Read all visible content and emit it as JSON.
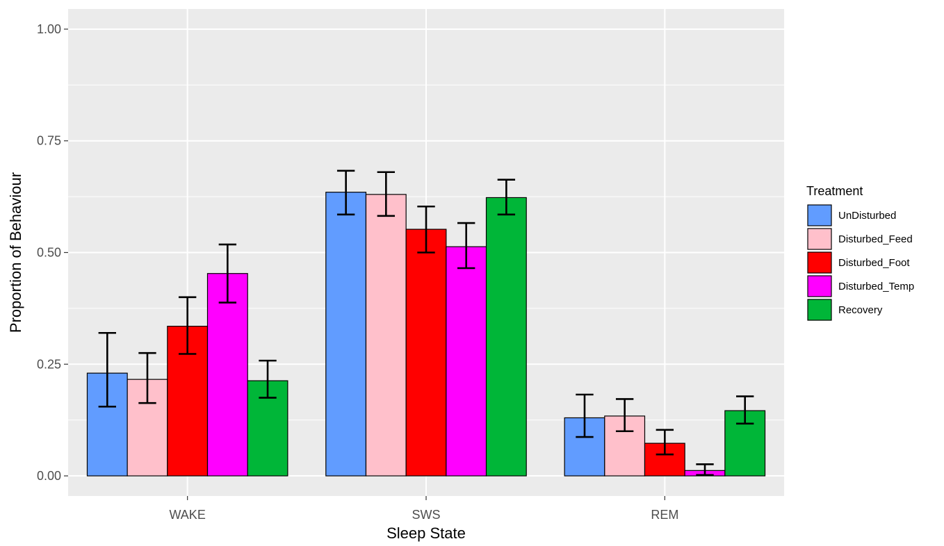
{
  "chart_data": {
    "type": "bar",
    "xlabel": "Sleep State",
    "ylabel": "Proportion of Behaviour",
    "categories": [
      "WAKE",
      "SWS",
      "REM"
    ],
    "ylim": [
      -0.045,
      1.045
    ],
    "yticks": [
      0.0,
      0.25,
      0.5,
      0.75,
      1.0
    ],
    "ytick_labels": [
      "0.00",
      "0.25",
      "0.50",
      "0.75",
      "1.00"
    ],
    "grid": true,
    "legend": {
      "title": "Treatment",
      "position": "right"
    },
    "error_bars": true,
    "series": [
      {
        "name": "UnDisturbed",
        "color": "#619CFF",
        "values": [
          0.23,
          0.635,
          0.13
        ],
        "error_low": [
          0.155,
          0.585,
          0.087
        ],
        "error_high": [
          0.32,
          0.683,
          0.182
        ]
      },
      {
        "name": "Disturbed_Feed",
        "color": "#FFC0CB",
        "values": [
          0.216,
          0.63,
          0.134
        ],
        "error_low": [
          0.163,
          0.582,
          0.1
        ],
        "error_high": [
          0.275,
          0.68,
          0.172
        ]
      },
      {
        "name": "Disturbed_Foot",
        "color": "#FF0000",
        "values": [
          0.335,
          0.552,
          0.073
        ],
        "error_low": [
          0.273,
          0.5,
          0.048
        ],
        "error_high": [
          0.4,
          0.603,
          0.103
        ]
      },
      {
        "name": "Disturbed_Temp",
        "color": "#FF00FF",
        "values": [
          0.453,
          0.513,
          0.012
        ],
        "error_low": [
          0.388,
          0.465,
          0.002
        ],
        "error_high": [
          0.518,
          0.566,
          0.026
        ]
      },
      {
        "name": "Recovery",
        "color": "#00B638",
        "values": [
          0.213,
          0.623,
          0.146
        ],
        "error_low": [
          0.175,
          0.585,
          0.117
        ],
        "error_high": [
          0.258,
          0.663,
          0.178
        ]
      }
    ]
  }
}
